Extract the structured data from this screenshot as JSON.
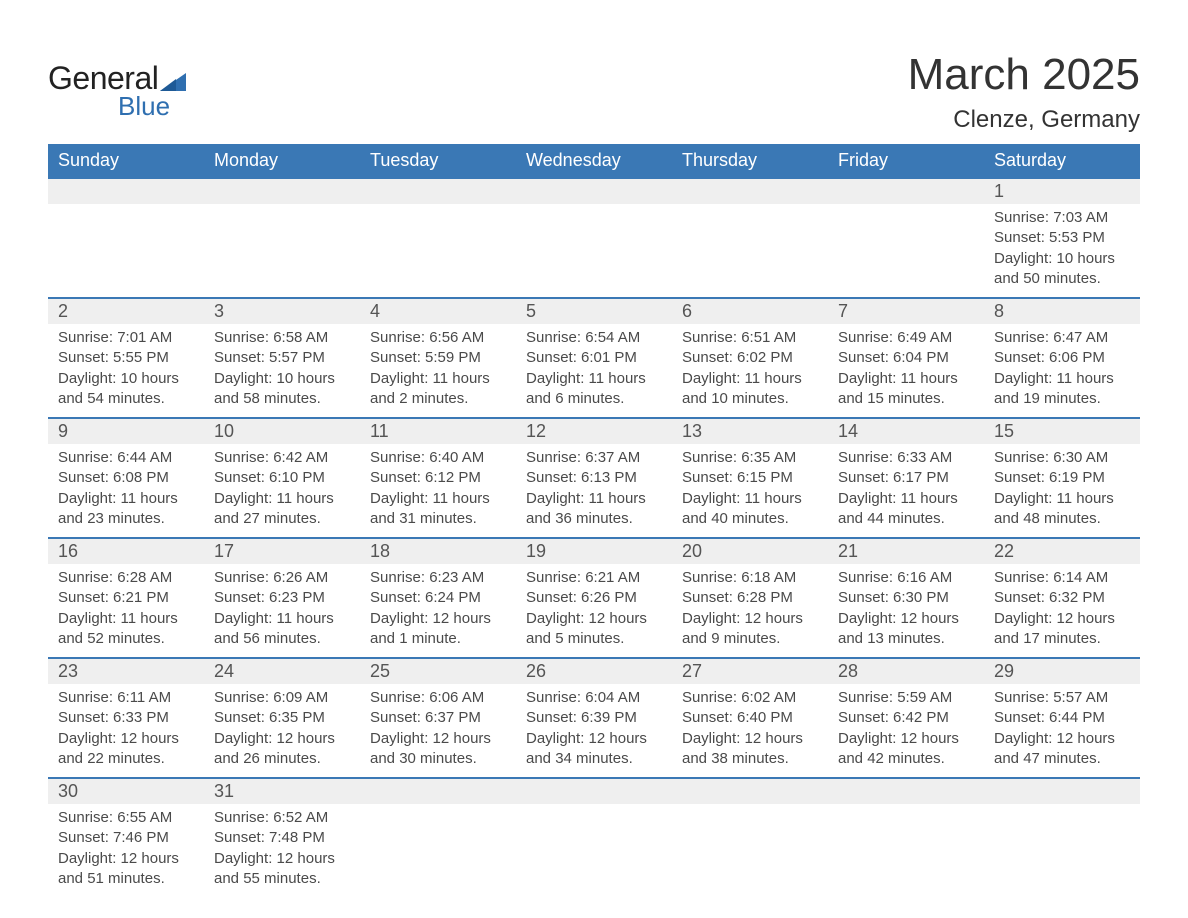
{
  "logo": {
    "text1": "General",
    "text2": "Blue",
    "accent_color": "#2f6fb0"
  },
  "title": "March 2025",
  "location": "Clenze, Germany",
  "colors": {
    "header_bg": "#3a78b5",
    "header_text": "#ffffff",
    "daynum_bg": "#efefef",
    "row_border": "#3a78b5",
    "body_text": "#4a4a4a",
    "page_bg": "#ffffff"
  },
  "weekdays": [
    "Sunday",
    "Monday",
    "Tuesday",
    "Wednesday",
    "Thursday",
    "Friday",
    "Saturday"
  ],
  "weeks": [
    [
      null,
      null,
      null,
      null,
      null,
      null,
      {
        "n": "1",
        "sr": "7:03 AM",
        "ss": "5:53 PM",
        "dl": "10 hours and 50 minutes."
      }
    ],
    [
      {
        "n": "2",
        "sr": "7:01 AM",
        "ss": "5:55 PM",
        "dl": "10 hours and 54 minutes."
      },
      {
        "n": "3",
        "sr": "6:58 AM",
        "ss": "5:57 PM",
        "dl": "10 hours and 58 minutes."
      },
      {
        "n": "4",
        "sr": "6:56 AM",
        "ss": "5:59 PM",
        "dl": "11 hours and 2 minutes."
      },
      {
        "n": "5",
        "sr": "6:54 AM",
        "ss": "6:01 PM",
        "dl": "11 hours and 6 minutes."
      },
      {
        "n": "6",
        "sr": "6:51 AM",
        "ss": "6:02 PM",
        "dl": "11 hours and 10 minutes."
      },
      {
        "n": "7",
        "sr": "6:49 AM",
        "ss": "6:04 PM",
        "dl": "11 hours and 15 minutes."
      },
      {
        "n": "8",
        "sr": "6:47 AM",
        "ss": "6:06 PM",
        "dl": "11 hours and 19 minutes."
      }
    ],
    [
      {
        "n": "9",
        "sr": "6:44 AM",
        "ss": "6:08 PM",
        "dl": "11 hours and 23 minutes."
      },
      {
        "n": "10",
        "sr": "6:42 AM",
        "ss": "6:10 PM",
        "dl": "11 hours and 27 minutes."
      },
      {
        "n": "11",
        "sr": "6:40 AM",
        "ss": "6:12 PM",
        "dl": "11 hours and 31 minutes."
      },
      {
        "n": "12",
        "sr": "6:37 AM",
        "ss": "6:13 PM",
        "dl": "11 hours and 36 minutes."
      },
      {
        "n": "13",
        "sr": "6:35 AM",
        "ss": "6:15 PM",
        "dl": "11 hours and 40 minutes."
      },
      {
        "n": "14",
        "sr": "6:33 AM",
        "ss": "6:17 PM",
        "dl": "11 hours and 44 minutes."
      },
      {
        "n": "15",
        "sr": "6:30 AM",
        "ss": "6:19 PM",
        "dl": "11 hours and 48 minutes."
      }
    ],
    [
      {
        "n": "16",
        "sr": "6:28 AM",
        "ss": "6:21 PM",
        "dl": "11 hours and 52 minutes."
      },
      {
        "n": "17",
        "sr": "6:26 AM",
        "ss": "6:23 PM",
        "dl": "11 hours and 56 minutes."
      },
      {
        "n": "18",
        "sr": "6:23 AM",
        "ss": "6:24 PM",
        "dl": "12 hours and 1 minute."
      },
      {
        "n": "19",
        "sr": "6:21 AM",
        "ss": "6:26 PM",
        "dl": "12 hours and 5 minutes."
      },
      {
        "n": "20",
        "sr": "6:18 AM",
        "ss": "6:28 PM",
        "dl": "12 hours and 9 minutes."
      },
      {
        "n": "21",
        "sr": "6:16 AM",
        "ss": "6:30 PM",
        "dl": "12 hours and 13 minutes."
      },
      {
        "n": "22",
        "sr": "6:14 AM",
        "ss": "6:32 PM",
        "dl": "12 hours and 17 minutes."
      }
    ],
    [
      {
        "n": "23",
        "sr": "6:11 AM",
        "ss": "6:33 PM",
        "dl": "12 hours and 22 minutes."
      },
      {
        "n": "24",
        "sr": "6:09 AM",
        "ss": "6:35 PM",
        "dl": "12 hours and 26 minutes."
      },
      {
        "n": "25",
        "sr": "6:06 AM",
        "ss": "6:37 PM",
        "dl": "12 hours and 30 minutes."
      },
      {
        "n": "26",
        "sr": "6:04 AM",
        "ss": "6:39 PM",
        "dl": "12 hours and 34 minutes."
      },
      {
        "n": "27",
        "sr": "6:02 AM",
        "ss": "6:40 PM",
        "dl": "12 hours and 38 minutes."
      },
      {
        "n": "28",
        "sr": "5:59 AM",
        "ss": "6:42 PM",
        "dl": "12 hours and 42 minutes."
      },
      {
        "n": "29",
        "sr": "5:57 AM",
        "ss": "6:44 PM",
        "dl": "12 hours and 47 minutes."
      }
    ],
    [
      {
        "n": "30",
        "sr": "6:55 AM",
        "ss": "7:46 PM",
        "dl": "12 hours and 51 minutes."
      },
      {
        "n": "31",
        "sr": "6:52 AM",
        "ss": "7:48 PM",
        "dl": "12 hours and 55 minutes."
      },
      null,
      null,
      null,
      null,
      null
    ]
  ],
  "labels": {
    "sunrise": "Sunrise: ",
    "sunset": "Sunset: ",
    "daylight": "Daylight: "
  }
}
